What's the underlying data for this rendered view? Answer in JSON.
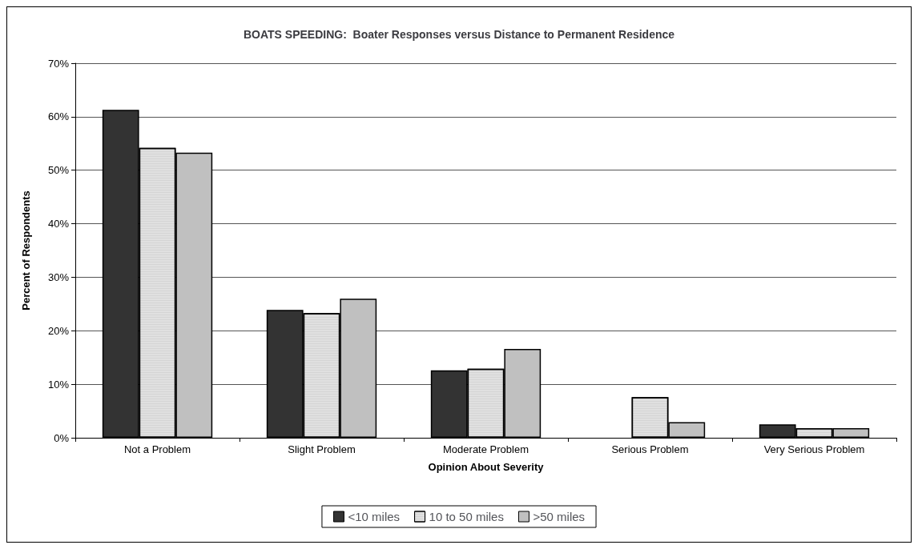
{
  "chart_data": {
    "type": "bar",
    "title": "BOATS SPEEDING:  Boater Responses versus Distance to Permanent Residence",
    "xlabel": "Opinion About Severity",
    "ylabel": "Percent of Respondents",
    "categories": [
      "Not a Problem",
      "Slight Problem",
      "Moderate Problem",
      "Serious Problem",
      "Very Serious Problem"
    ],
    "series": [
      {
        "name": "<10 miles",
        "color": "#333333",
        "values": [
          61.3,
          23.9,
          12.6,
          null,
          2.5
        ]
      },
      {
        "name": "10 to 50 miles",
        "color": "#e0e0e0",
        "values": [
          54.2,
          23.3,
          12.9,
          7.6,
          1.8
        ]
      },
      {
        "name": ">50 miles",
        "color": "#c0c0c0",
        "values": [
          53.3,
          26.0,
          16.6,
          2.9,
          1.8
        ]
      }
    ],
    "ylim": [
      0,
      70
    ],
    "yticks": [
      {
        "value": 0,
        "label": "0%"
      },
      {
        "value": 10,
        "label": "10%"
      },
      {
        "value": 20,
        "label": "20%"
      },
      {
        "value": 30,
        "label": "30%"
      },
      {
        "value": 40,
        "label": "40%"
      },
      {
        "value": 50,
        "label": "50%"
      },
      {
        "value": 60,
        "label": "60%"
      },
      {
        "value": 70,
        "label": "70%"
      }
    ],
    "grid": "y",
    "legend": "bottom"
  }
}
